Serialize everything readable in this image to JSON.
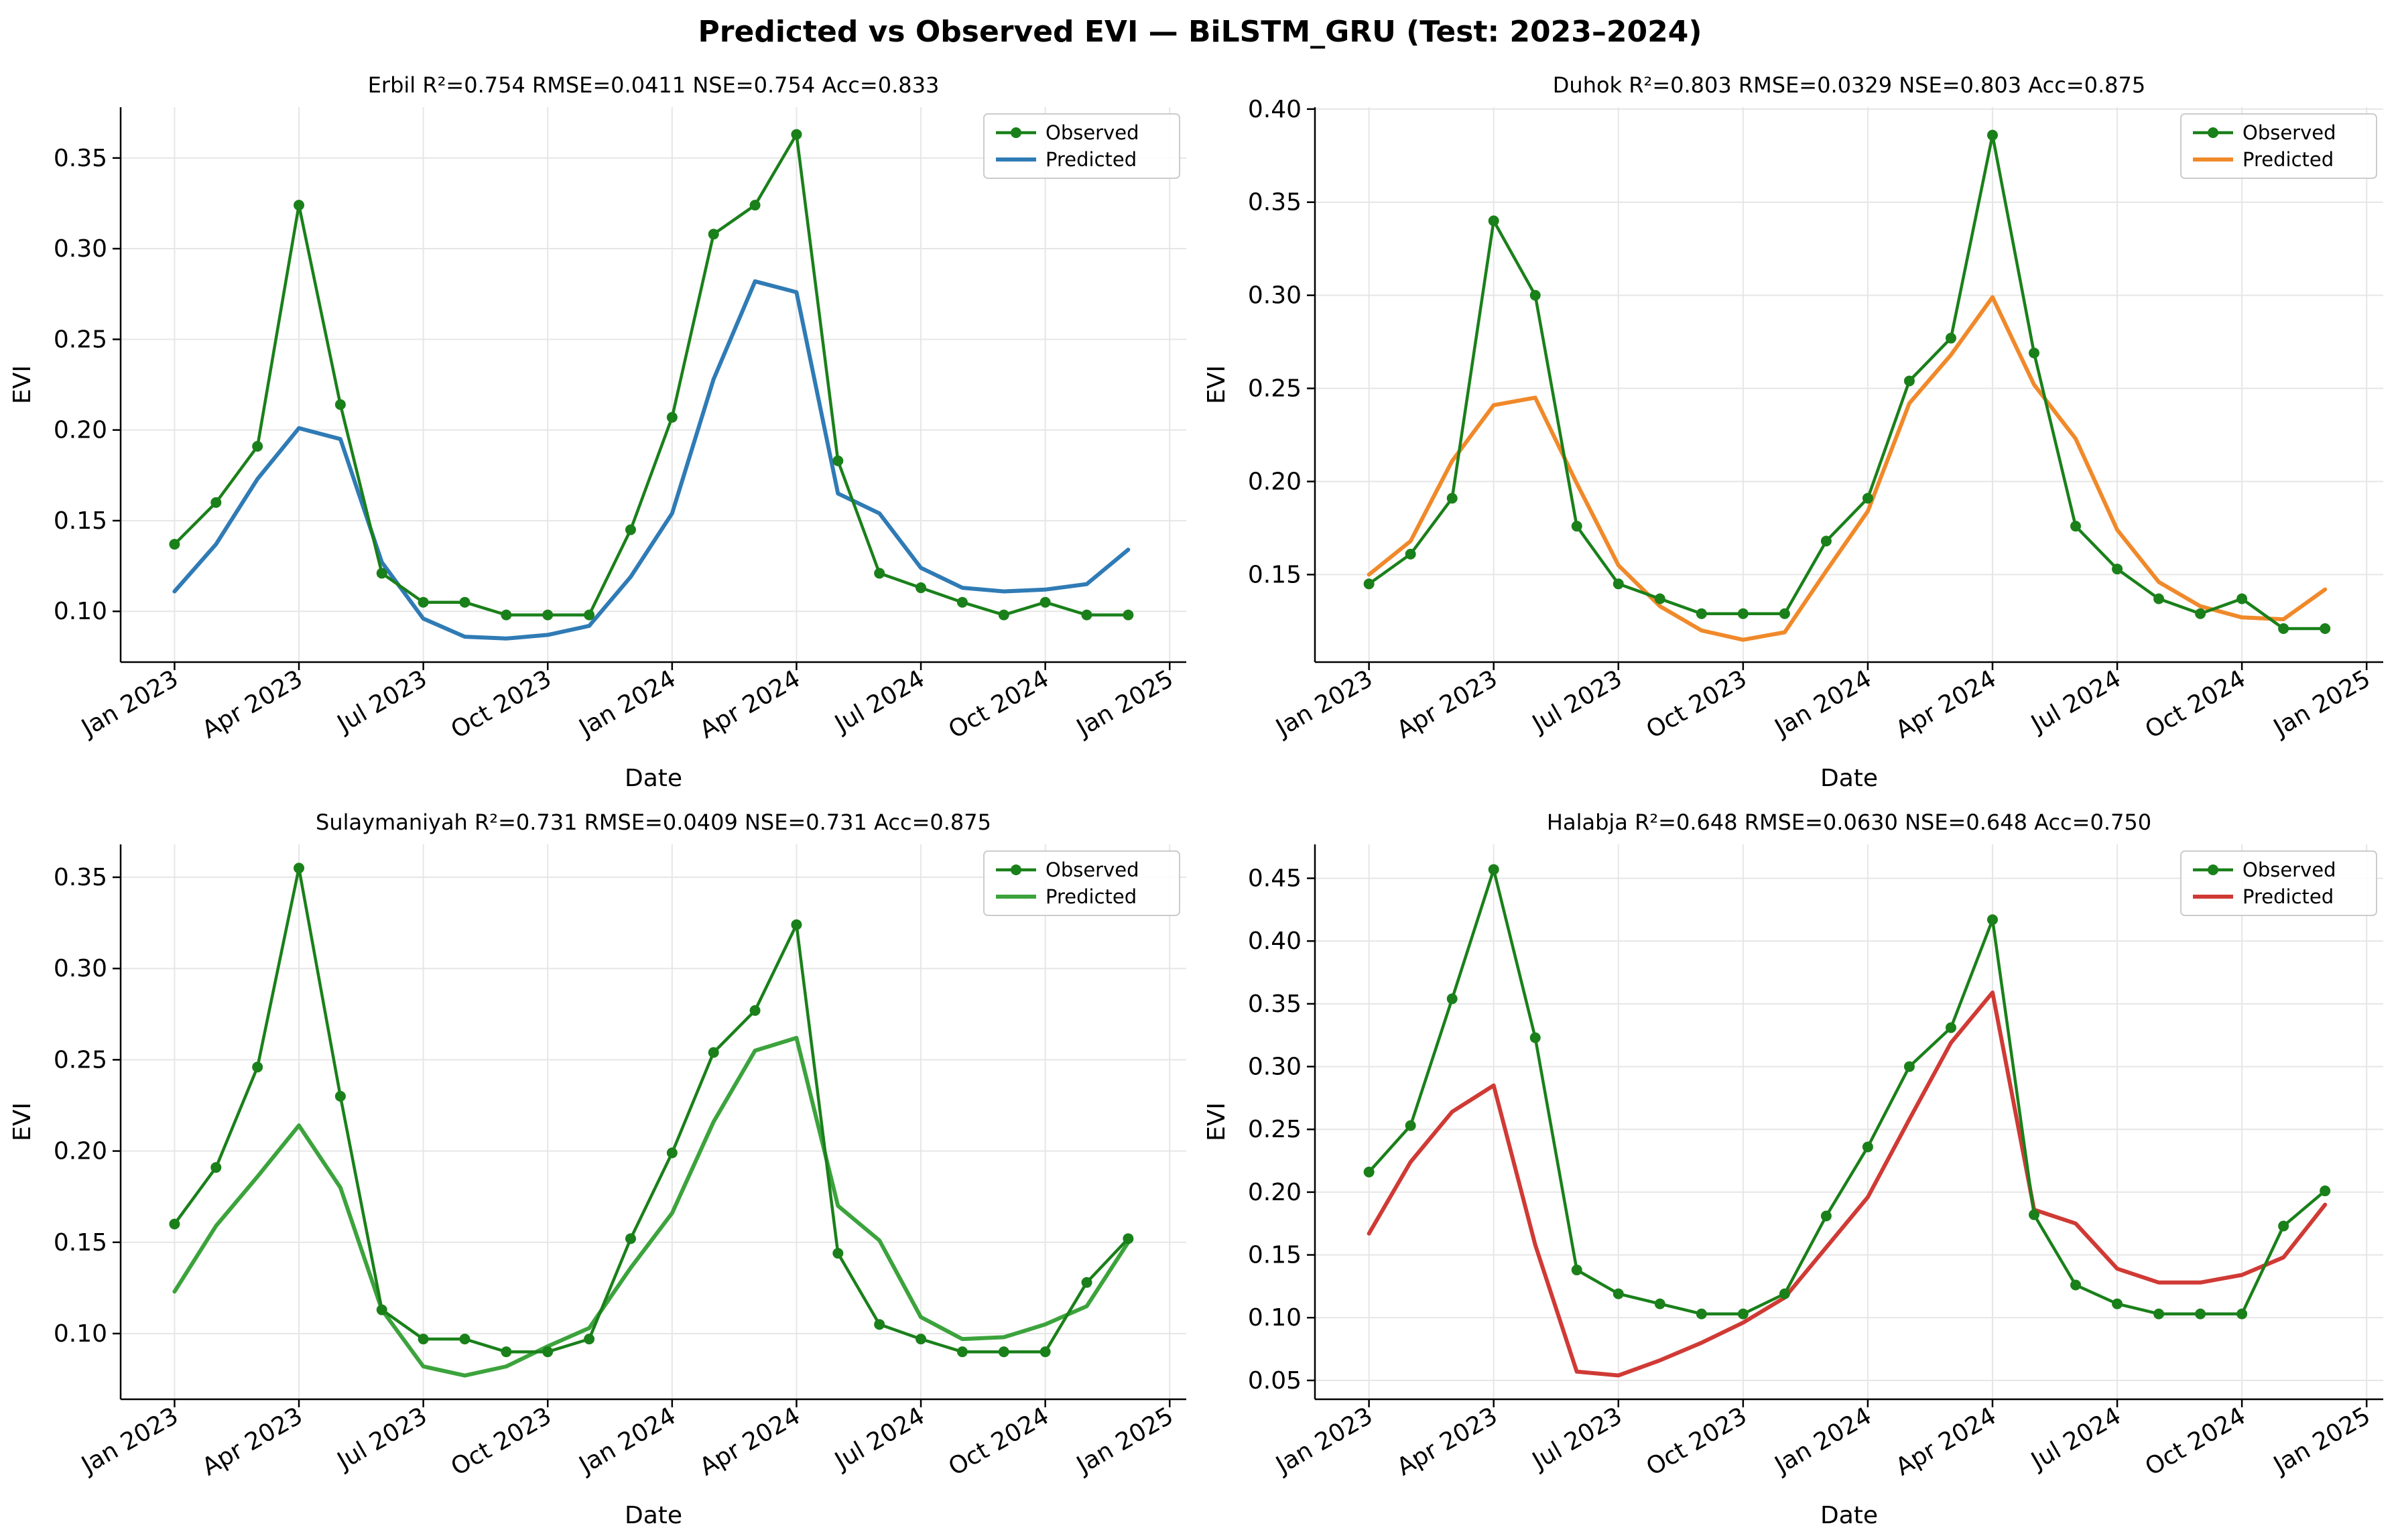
{
  "suptitle": "Predicted vs Observed EVI — BiLSTM_GRU (Test: 2023–2024)",
  "chart_data": [
    {
      "type": "line",
      "title": "Erbil   R²=0.754  RMSE=0.0411  NSE=0.754  Acc=0.833",
      "xlabel": "Date",
      "ylabel": "EVI",
      "x": [
        "2023-01",
        "2023-02",
        "2023-03",
        "2023-04",
        "2023-05",
        "2023-06",
        "2023-07",
        "2023-08",
        "2023-09",
        "2023-10",
        "2023-11",
        "2023-12",
        "2024-01",
        "2024-02",
        "2024-03",
        "2024-04",
        "2024-05",
        "2024-06",
        "2024-07",
        "2024-08",
        "2024-09",
        "2024-10",
        "2024-11",
        "2024-12"
      ],
      "x_ticks": [
        "Jan 2023",
        "Apr 2023",
        "Jul 2023",
        "Oct 2023",
        "Jan 2024",
        "Apr 2024",
        "Jul 2024",
        "Oct 2024",
        "Jan 2025"
      ],
      "y_ticks": [
        "0.10",
        "0.15",
        "0.20",
        "0.25",
        "0.30",
        "0.35"
      ],
      "ylim": [
        0.072,
        0.378
      ],
      "grid": true,
      "legend_position": "upper right",
      "series": [
        {
          "name": "Observed",
          "color": "#1a801a",
          "marker": "circle",
          "values": [
            0.137,
            0.16,
            0.191,
            0.324,
            0.214,
            0.121,
            0.105,
            0.105,
            0.098,
            0.098,
            0.098,
            0.145,
            0.207,
            0.308,
            0.324,
            0.363,
            0.183,
            0.121,
            0.113,
            0.105,
            0.098,
            0.105,
            0.098,
            0.098
          ]
        },
        {
          "name": "Predicted",
          "color": "#2f7bb5",
          "marker": "none",
          "values": [
            0.111,
            0.137,
            0.173,
            0.201,
            0.195,
            0.127,
            0.096,
            0.086,
            0.085,
            0.087,
            0.092,
            0.119,
            0.154,
            0.228,
            0.282,
            0.276,
            0.165,
            0.154,
            0.124,
            0.113,
            0.111,
            0.112,
            0.115,
            0.134
          ]
        }
      ]
    },
    {
      "type": "line",
      "title": "Duhok   R²=0.803  RMSE=0.0329  NSE=0.803  Acc=0.875",
      "xlabel": "Date",
      "ylabel": "EVI",
      "x": [
        "2023-01",
        "2023-02",
        "2023-03",
        "2023-04",
        "2023-05",
        "2023-06",
        "2023-07",
        "2023-08",
        "2023-09",
        "2023-10",
        "2023-11",
        "2023-12",
        "2024-01",
        "2024-02",
        "2024-03",
        "2024-04",
        "2024-05",
        "2024-06",
        "2024-07",
        "2024-08",
        "2024-09",
        "2024-10",
        "2024-11",
        "2024-12"
      ],
      "x_ticks": [
        "Jan 2023",
        "Apr 2023",
        "Jul 2023",
        "Oct 2023",
        "Jan 2024",
        "Apr 2024",
        "Jul 2024",
        "Oct 2024",
        "Jan 2025"
      ],
      "y_ticks": [
        "0.15",
        "0.20",
        "0.25",
        "0.30",
        "0.35",
        "0.40"
      ],
      "ylim": [
        0.103,
        0.401
      ],
      "grid": true,
      "legend_position": "upper right",
      "series": [
        {
          "name": "Observed",
          "color": "#1a801a",
          "marker": "circle",
          "values": [
            0.145,
            0.161,
            0.191,
            0.34,
            0.3,
            0.176,
            0.145,
            0.137,
            0.129,
            0.129,
            0.129,
            0.168,
            0.191,
            0.254,
            0.277,
            0.386,
            0.269,
            0.176,
            0.153,
            0.137,
            0.129,
            0.137,
            0.121,
            0.121
          ]
        },
        {
          "name": "Predicted",
          "color": "#f0892a",
          "marker": "none",
          "values": [
            0.15,
            0.168,
            0.211,
            0.241,
            0.245,
            0.199,
            0.155,
            0.133,
            0.12,
            0.115,
            0.119,
            0.152,
            0.184,
            0.242,
            0.268,
            0.299,
            0.252,
            0.223,
            0.174,
            0.146,
            0.133,
            0.127,
            0.126,
            0.142
          ]
        }
      ]
    },
    {
      "type": "line",
      "title": "Sulaymaniyah   R²=0.731  RMSE=0.0409  NSE=0.731  Acc=0.875",
      "xlabel": "Date",
      "ylabel": "EVI",
      "x": [
        "2023-01",
        "2023-02",
        "2023-03",
        "2023-04",
        "2023-05",
        "2023-06",
        "2023-07",
        "2023-08",
        "2023-09",
        "2023-10",
        "2023-11",
        "2023-12",
        "2024-01",
        "2024-02",
        "2024-03",
        "2024-04",
        "2024-05",
        "2024-06",
        "2024-07",
        "2024-08",
        "2024-09",
        "2024-10",
        "2024-11",
        "2024-12"
      ],
      "x_ticks": [
        "Jan 2023",
        "Apr 2023",
        "Jul 2023",
        "Oct 2023",
        "Jan 2024",
        "Apr 2024",
        "Jul 2024",
        "Oct 2024",
        "Jan 2025"
      ],
      "y_ticks": [
        "0.10",
        "0.15",
        "0.20",
        "0.25",
        "0.30",
        "0.35"
      ],
      "ylim": [
        0.064,
        0.368
      ],
      "grid": true,
      "legend_position": "upper right",
      "series": [
        {
          "name": "Observed",
          "color": "#1a801a",
          "marker": "circle",
          "values": [
            0.16,
            0.191,
            0.246,
            0.355,
            0.23,
            0.113,
            0.097,
            0.097,
            0.09,
            0.09,
            0.097,
            0.152,
            0.199,
            0.254,
            0.277,
            0.324,
            0.144,
            0.105,
            0.097,
            0.09,
            0.09,
            0.09,
            0.128,
            0.152
          ]
        },
        {
          "name": "Predicted",
          "color": "#3ca33c",
          "marker": "none",
          "values": [
            0.123,
            0.159,
            0.186,
            0.214,
            0.18,
            0.113,
            0.082,
            0.077,
            0.082,
            0.093,
            0.103,
            0.136,
            0.166,
            0.216,
            0.255,
            0.262,
            0.17,
            0.151,
            0.109,
            0.097,
            0.098,
            0.105,
            0.115,
            0.15
          ]
        }
      ]
    },
    {
      "type": "line",
      "title": "Halabja   R²=0.648  RMSE=0.0630  NSE=0.648  Acc=0.750",
      "xlabel": "Date",
      "ylabel": "EVI",
      "x": [
        "2023-01",
        "2023-02",
        "2023-03",
        "2023-04",
        "2023-05",
        "2023-06",
        "2023-07",
        "2023-08",
        "2023-09",
        "2023-10",
        "2023-11",
        "2023-12",
        "2024-01",
        "2024-02",
        "2024-03",
        "2024-04",
        "2024-05",
        "2024-06",
        "2024-07",
        "2024-08",
        "2024-09",
        "2024-10",
        "2024-11",
        "2024-12"
      ],
      "x_ticks": [
        "Jan 2023",
        "Apr 2023",
        "Jul 2023",
        "Oct 2023",
        "Jan 2024",
        "Apr 2024",
        "Jul 2024",
        "Oct 2024",
        "Jan 2025"
      ],
      "y_ticks": [
        "0.05",
        "0.10",
        "0.15",
        "0.20",
        "0.25",
        "0.30",
        "0.35",
        "0.40",
        "0.45"
      ],
      "ylim": [
        0.035,
        0.477
      ],
      "grid": true,
      "legend_position": "upper right",
      "series": [
        {
          "name": "Observed",
          "color": "#1a801a",
          "marker": "circle",
          "values": [
            0.216,
            0.253,
            0.354,
            0.457,
            0.323,
            0.138,
            0.119,
            0.111,
            0.103,
            0.103,
            0.119,
            0.181,
            0.236,
            0.3,
            0.331,
            0.417,
            0.182,
            0.126,
            0.111,
            0.103,
            0.103,
            0.103,
            0.173,
            0.201
          ]
        },
        {
          "name": "Predicted",
          "color": "#d03a35",
          "marker": "none",
          "values": [
            0.167,
            0.224,
            0.264,
            0.285,
            0.158,
            0.057,
            0.054,
            0.066,
            0.08,
            0.096,
            0.116,
            0.156,
            0.196,
            0.258,
            0.319,
            0.359,
            0.186,
            0.175,
            0.139,
            0.128,
            0.128,
            0.134,
            0.148,
            0.19
          ]
        }
      ]
    }
  ]
}
